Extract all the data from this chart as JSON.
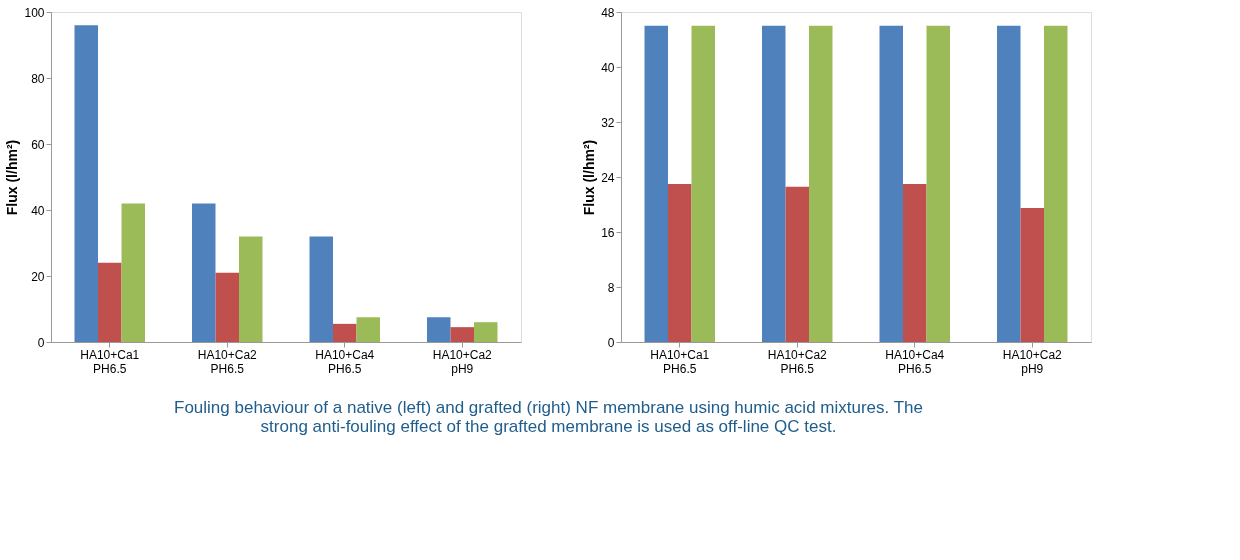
{
  "chart_data": [
    {
      "type": "bar",
      "ylabel": "Flux (l/hm²)",
      "categories": [
        "HA10+Ca1\nPH6.5",
        "HA10+Ca2\nPH6.5",
        "HA10+Ca4\nPH6.5",
        "HA10+Ca2\npH9"
      ],
      "ylim": [
        0,
        100
      ],
      "yticks": [
        0,
        20,
        40,
        60,
        80,
        100
      ],
      "grid": false,
      "legend": false,
      "series": [
        {
          "color": "#4f81bd",
          "values": [
            96,
            42,
            32,
            7.5
          ]
        },
        {
          "color": "#c0504d",
          "values": [
            24,
            21,
            5.5,
            4.5
          ]
        },
        {
          "color": "#9bbb59",
          "values": [
            42,
            32,
            7.5,
            6
          ]
        }
      ],
      "annotations": [
        "Fouling behaviour of a native (left) and grafted (right) NF membrane using humic acid mixtures. The strong anti-fouling effect of the grafted membrane is used as off-line QC test."
      ]
    },
    {
      "type": "bar",
      "ylabel": "Flux (l/hm²)",
      "categories": [
        "HA10+Ca1\nPH6.5",
        "HA10+Ca2\nPH6.5",
        "HA10+Ca4\nPH6.5",
        "HA10+Ca2\npH9"
      ],
      "ylim": [
        0,
        48
      ],
      "yticks": [
        0,
        8,
        16,
        24,
        32,
        40,
        48
      ],
      "grid": false,
      "legend": false,
      "series": [
        {
          "color": "#4f81bd",
          "values": [
            46,
            46,
            46,
            46
          ]
        },
        {
          "color": "#c0504d",
          "values": [
            23,
            22.6,
            23,
            19.5
          ]
        },
        {
          "color": "#9bbb59",
          "values": [
            46,
            46,
            46,
            46
          ]
        }
      ]
    }
  ]
}
